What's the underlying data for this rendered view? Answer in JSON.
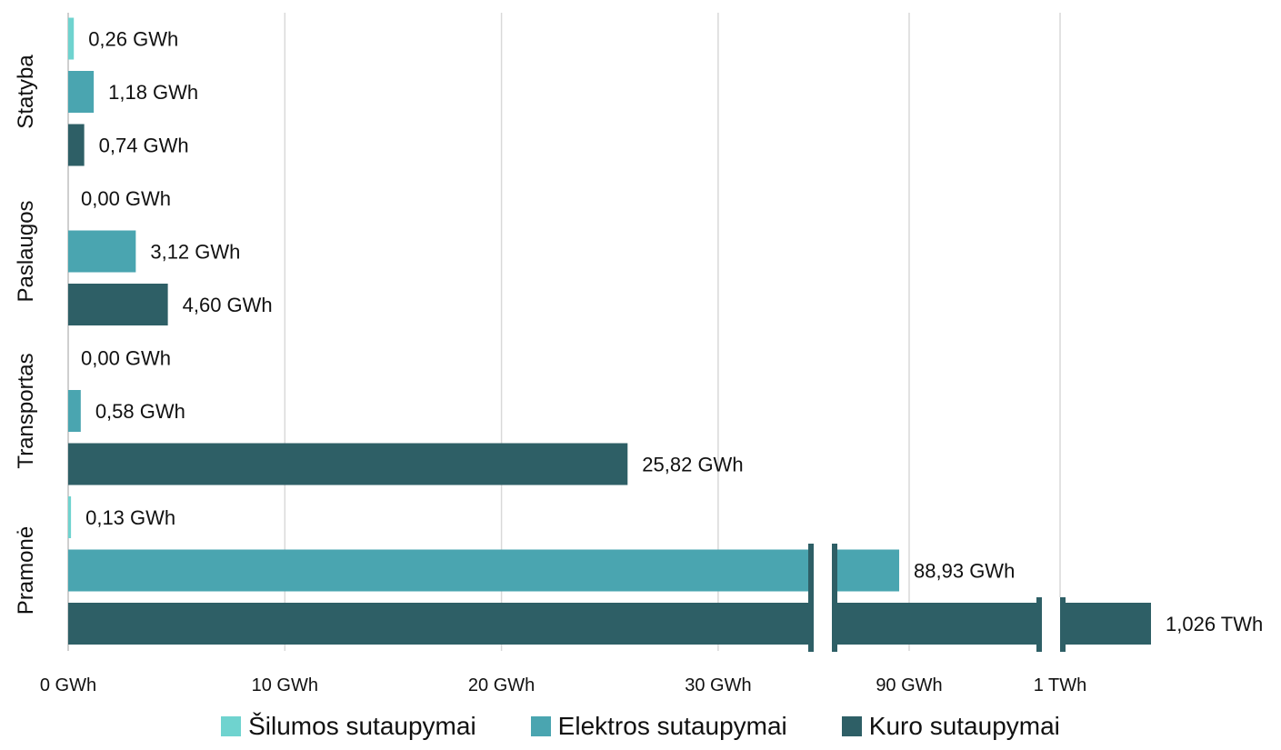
{
  "chart_data": {
    "type": "bar",
    "orientation": "horizontal",
    "axis_break": true,
    "categories": [
      "Statyba",
      "Paslaugos",
      "Transportas",
      "Pramonė"
    ],
    "series": [
      {
        "name": "Šilumos sutaupymai",
        "color": "#6fd3cf",
        "values": [
          0.26,
          0.0,
          0.0,
          0.13
        ],
        "labels": [
          "0,26 GWh",
          "0,00 GWh",
          "0,00 GWh",
          "0,13 GWh"
        ]
      },
      {
        "name": "Elektros sutaupymai",
        "color": "#4aa5b0",
        "values": [
          1.18,
          3.12,
          0.58,
          88.93
        ],
        "labels": [
          "1,18 GWh",
          "3,12 GWh",
          "0,58 GWh",
          "88,93 GWh"
        ]
      },
      {
        "name": "Kuro sutaupymai",
        "color": "#2e5f66",
        "values": [
          0.74,
          4.6,
          25.82,
          1026
        ],
        "labels": [
          "0,74 GWh",
          "4,60 GWh",
          "25,82 GWh",
          "1,026 TWh"
        ]
      }
    ],
    "x_ticks": [
      {
        "value": 0,
        "label": "0 GWh"
      },
      {
        "value": 10,
        "label": "10 GWh"
      },
      {
        "value": 20,
        "label": "20 GWh"
      },
      {
        "value": 30,
        "label": "30 GWh"
      },
      {
        "value": 90,
        "label": "90 GWh"
      },
      {
        "value": 1000,
        "label": "1 TWh"
      }
    ],
    "grid": true,
    "legend_position": "bottom"
  }
}
